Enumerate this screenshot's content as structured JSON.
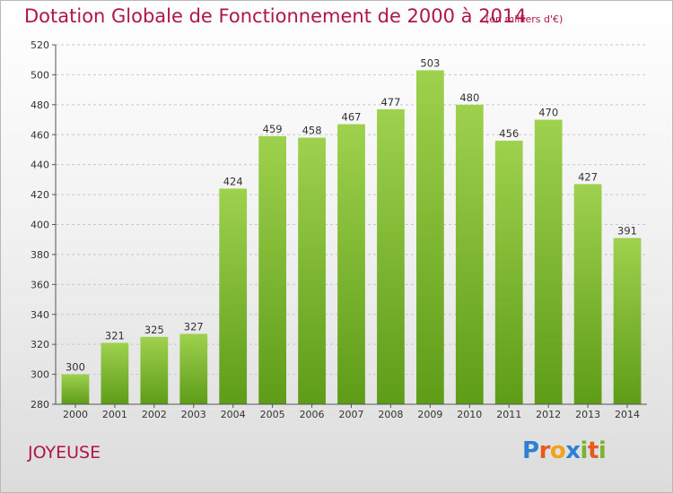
{
  "header": {
    "title": "Dotation Globale de Fonctionnement de 2000 à 2014",
    "subtitle": "(en milliers d'€)"
  },
  "footer": {
    "commune": "JOYEUSE",
    "logo": "Proxiti"
  },
  "colors": {
    "bar_top": "#9ed14e",
    "bar_bottom": "#5e9c17",
    "title": "#b0154a",
    "logo": [
      "#2d7fd2",
      "#e55b1f",
      "#f2a21b",
      "#2d7fd2",
      "#7ab32e",
      "#e55b1f",
      "#7ab32e"
    ]
  },
  "chart_data": {
    "type": "bar",
    "categories": [
      "2000",
      "2001",
      "2002",
      "2003",
      "2004",
      "2005",
      "2006",
      "2007",
      "2008",
      "2009",
      "2010",
      "2011",
      "2012",
      "2013",
      "2014"
    ],
    "values": [
      300,
      321,
      325,
      327,
      424,
      459,
      458,
      467,
      477,
      503,
      480,
      456,
      470,
      427,
      391
    ],
    "ylim": [
      280,
      520
    ],
    "yticks": [
      280,
      300,
      320,
      340,
      360,
      380,
      400,
      420,
      440,
      460,
      480,
      500,
      520
    ],
    "grid": true
  }
}
